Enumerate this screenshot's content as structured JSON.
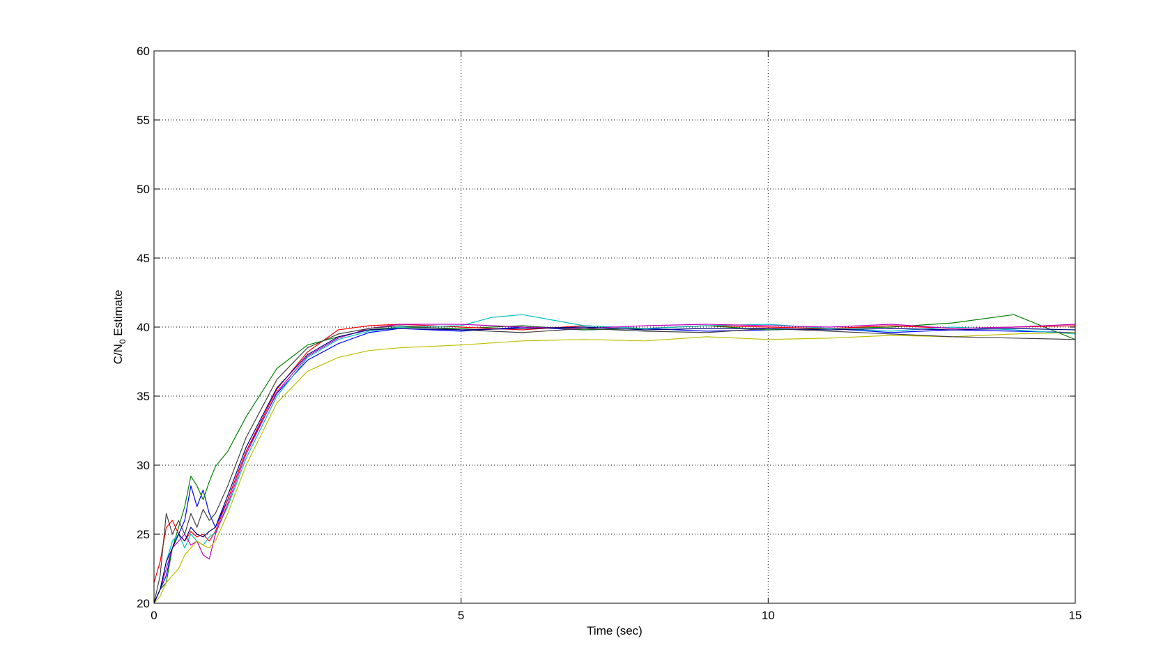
{
  "chart_data": {
    "type": "line",
    "xlabel": "Time (sec)",
    "ylabel_main": "C/N",
    "ylabel_sub": "0",
    "ylabel_rest": " Estimate",
    "xlim": [
      0,
      15
    ],
    "ylim": [
      20,
      60
    ],
    "xticks": [
      0,
      5,
      10,
      15
    ],
    "yticks": [
      20,
      25,
      30,
      35,
      40,
      45,
      50,
      55,
      60
    ],
    "grid": true,
    "grid_style": "dotted",
    "series": [
      {
        "color": "#0000ff",
        "x": [
          0,
          0.1,
          0.2,
          0.3,
          0.4,
          0.5,
          0.6,
          0.7,
          0.8,
          0.9,
          1.0,
          1.2,
          1.5,
          2.0,
          2.5,
          3.0,
          3.5,
          4.0,
          5.0,
          6.0,
          7.0,
          8.0,
          9.0,
          10.0,
          11.0,
          12.0,
          13.0,
          14.0,
          15.0
        ],
        "y": [
          20,
          21,
          22,
          24,
          25,
          26,
          28.5,
          27,
          28.2,
          26.5,
          25.5,
          27.5,
          31,
          35.2,
          37.6,
          38.8,
          39.6,
          39.9,
          39.7,
          40.0,
          39.8,
          39.9,
          39.7,
          39.8,
          39.9,
          39.6,
          39.8,
          39.7,
          39.6
        ]
      },
      {
        "color": "#008000",
        "x": [
          0,
          0.1,
          0.2,
          0.3,
          0.4,
          0.5,
          0.6,
          0.7,
          0.8,
          0.9,
          1.0,
          1.2,
          1.5,
          2.0,
          2.5,
          3.0,
          3.5,
          4.0,
          5.0,
          6.0,
          7.0,
          8.0,
          9.0,
          10.0,
          11.0,
          12.0,
          13.0,
          14.0,
          15.0
        ],
        "y": [
          20,
          21,
          21.5,
          24,
          25.5,
          27,
          29.2,
          28.5,
          27.5,
          28.8,
          29.9,
          31,
          33.5,
          37,
          38.7,
          39.3,
          39.8,
          40.0,
          39.9,
          40.1,
          39.8,
          39.9,
          40.1,
          39.8,
          39.9,
          40.0,
          40.3,
          40.9,
          39.1
        ]
      },
      {
        "color": "#ff0000",
        "x": [
          0,
          0.1,
          0.2,
          0.3,
          0.4,
          0.5,
          0.6,
          0.7,
          0.8,
          0.9,
          1.0,
          1.2,
          1.5,
          2.0,
          2.5,
          3.0,
          3.5,
          4.0,
          5.0,
          6.0,
          7.0,
          8.0,
          9.0,
          10.0,
          11.0,
          12.0,
          13.0,
          14.0,
          15.0
        ],
        "y": [
          21.5,
          23,
          25.5,
          26,
          25,
          24.5,
          25.2,
          24.8,
          25,
          24.5,
          25.2,
          27.5,
          31,
          35.5,
          38.2,
          39.8,
          40.1,
          40.2,
          40.0,
          39.8,
          40.1,
          39.9,
          40.1,
          40.0,
          39.9,
          40.1,
          39.9,
          40.0,
          40.1
        ]
      },
      {
        "color": "#00bfbf",
        "x": [
          0,
          0.1,
          0.2,
          0.3,
          0.4,
          0.5,
          0.6,
          0.7,
          0.8,
          0.9,
          1.0,
          1.2,
          1.5,
          2.0,
          2.5,
          3.0,
          3.5,
          4.0,
          5.0,
          5.5,
          6.0,
          6.5,
          7.0,
          8.0,
          9.0,
          10.0,
          11.0,
          12.0,
          13.0,
          14.0,
          15.0
        ],
        "y": [
          20,
          21,
          23,
          24.5,
          25,
          24,
          25,
          24.5,
          24.2,
          24.8,
          25.1,
          27,
          30.5,
          35,
          37.8,
          39.1,
          39.7,
          40.0,
          40.1,
          40.7,
          40.9,
          40.5,
          40.1,
          39.9,
          40.1,
          40.2,
          39.9,
          39.7,
          40.0,
          39.8,
          39.5
        ]
      },
      {
        "color": "#bf00bf",
        "x": [
          0,
          0.1,
          0.2,
          0.3,
          0.4,
          0.5,
          0.6,
          0.7,
          0.8,
          0.9,
          1.0,
          1.2,
          1.5,
          2.0,
          2.5,
          3.0,
          3.5,
          4.0,
          5.0,
          6.0,
          7.0,
          8.0,
          9.0,
          10.0,
          11.0,
          12.0,
          13.0,
          14.0,
          15.0
        ],
        "y": [
          20,
          21,
          22.5,
          24,
          24.5,
          25,
          24.2,
          24.5,
          23.5,
          23.2,
          25,
          27.2,
          30.8,
          35.3,
          37.9,
          39.2,
          39.9,
          40.2,
          40.2,
          40.0,
          39.9,
          40.1,
          40.2,
          40.1,
          40.0,
          40.2,
          39.9,
          40.0,
          40.2
        ]
      },
      {
        "color": "#bfbf00",
        "x": [
          0,
          0.1,
          0.2,
          0.3,
          0.4,
          0.5,
          0.6,
          0.7,
          0.8,
          0.9,
          1.0,
          1.2,
          1.5,
          2.0,
          2.5,
          3.0,
          3.5,
          4.0,
          5.0,
          6.0,
          7.0,
          8.0,
          9.0,
          10.0,
          11.0,
          12.0,
          13.0,
          14.0,
          15.0
        ],
        "y": [
          20,
          20.5,
          21.5,
          22,
          22.5,
          23.5,
          24,
          24.5,
          24.2,
          24,
          24.5,
          26.5,
          30,
          34.5,
          36.8,
          37.8,
          38.3,
          38.5,
          38.7,
          39.0,
          39.1,
          39.0,
          39.3,
          39.1,
          39.2,
          39.4,
          39.3,
          39.5,
          39.6
        ]
      },
      {
        "color": "#404040",
        "x": [
          0,
          0.1,
          0.2,
          0.3,
          0.4,
          0.5,
          0.6,
          0.7,
          0.8,
          0.9,
          1.0,
          1.2,
          1.5,
          2.0,
          2.5,
          3.0,
          3.5,
          4.0,
          5.0,
          6.0,
          7.0,
          8.0,
          9.0,
          10.0,
          11.0,
          12.0,
          13.0,
          14.0,
          15.0
        ],
        "y": [
          20,
          22,
          26.5,
          25,
          26,
          25,
          26.5,
          25.5,
          26.8,
          26,
          26.5,
          28.5,
          32,
          36.2,
          38.5,
          39.5,
          39.9,
          40.1,
          39.8,
          39.6,
          39.9,
          39.7,
          39.6,
          39.9,
          39.7,
          39.5,
          39.3,
          39.2,
          39.1
        ]
      },
      {
        "color": "#000080",
        "x": [
          0,
          0.1,
          0.2,
          0.3,
          0.4,
          0.5,
          0.6,
          0.7,
          0.8,
          0.9,
          1.0,
          1.2,
          1.5,
          2.0,
          2.5,
          3.0,
          3.5,
          4.0,
          5.0,
          6.0,
          7.0,
          8.0,
          9.0,
          10.0,
          11.0,
          12.0,
          13.0,
          14.0,
          15.0
        ],
        "y": [
          20,
          21,
          23,
          24,
          25,
          24.5,
          25.5,
          25,
          24.8,
          25.2,
          25.5,
          27.8,
          31.3,
          35.6,
          38.0,
          39.3,
          39.8,
          39.9,
          39.8,
          39.9,
          40.0,
          39.8,
          39.9,
          39.9,
          39.8,
          39.9,
          39.8,
          39.9,
          39.8
        ]
      }
    ]
  }
}
